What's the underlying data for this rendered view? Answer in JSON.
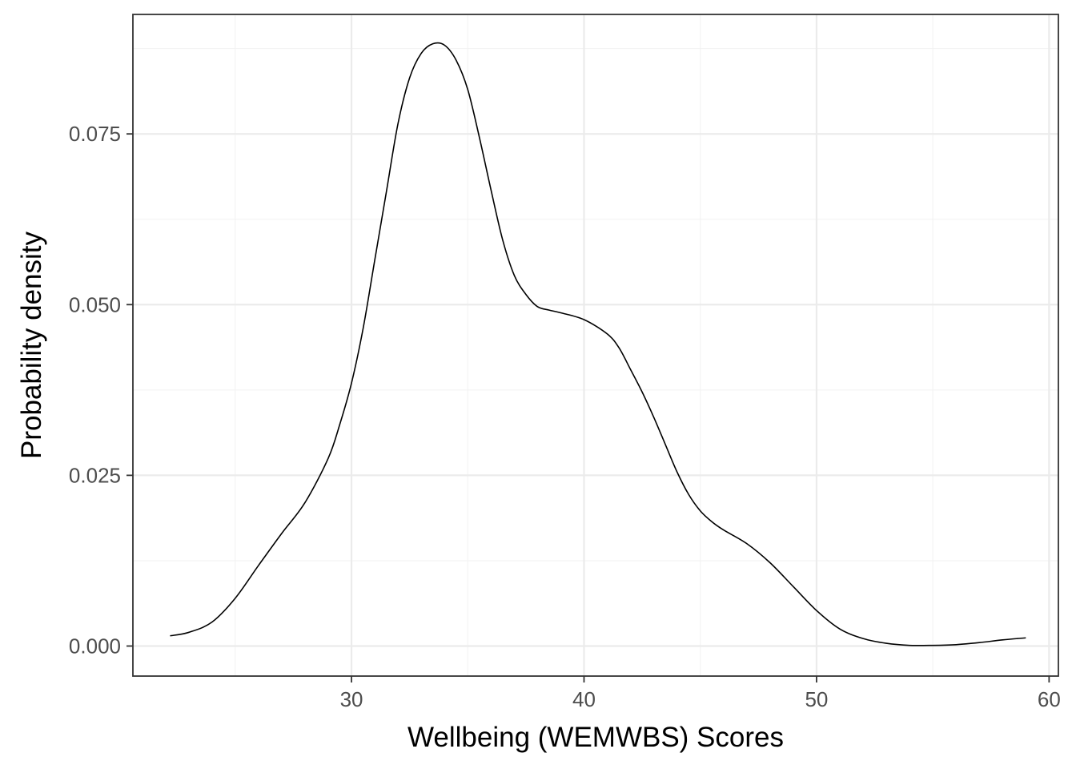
{
  "chart_data": {
    "type": "line",
    "title": "",
    "xlabel": "Wellbeing (WEMWBS) Scores",
    "ylabel": "Probability density",
    "xlim": [
      20.6,
      60.4
    ],
    "ylim": [
      -0.0044,
      0.0925
    ],
    "x_ticks": [
      30,
      40,
      50,
      60
    ],
    "x_tick_labels": [
      "30",
      "40",
      "50",
      "60"
    ],
    "y_ticks": [
      0.0,
      0.025,
      0.05,
      0.075
    ],
    "y_tick_labels": [
      "0.000",
      "0.025",
      "0.050",
      "0.075"
    ],
    "grid": true,
    "legend": "none",
    "series": [
      {
        "x": [
          22.2,
          23.0,
          24.0,
          25.0,
          26.0,
          27.0,
          28.0,
          29.0,
          29.5,
          30.0,
          30.5,
          31.0,
          31.5,
          32.0,
          32.5,
          33.0,
          33.5,
          34.0,
          34.5,
          35.0,
          35.5,
          36.0,
          36.5,
          37.0,
          37.5,
          38.0,
          38.5,
          39.0,
          40.0,
          41.0,
          41.5,
          42.0,
          42.5,
          43.0,
          43.5,
          44.0,
          44.5,
          45.0,
          45.5,
          46.0,
          47.0,
          48.0,
          49.0,
          50.0,
          51.0,
          52.0,
          53.0,
          54.0,
          55.0,
          56.0,
          57.0,
          58.0,
          59.0
        ],
        "y": [
          0.0015,
          0.002,
          0.0035,
          0.007,
          0.0118,
          0.0165,
          0.021,
          0.0275,
          0.0325,
          0.0385,
          0.0465,
          0.0565,
          0.0665,
          0.0765,
          0.0832,
          0.0868,
          0.0882,
          0.088,
          0.0858,
          0.0815,
          0.0745,
          0.0668,
          0.0595,
          0.0543,
          0.0515,
          0.0497,
          0.0492,
          0.0488,
          0.0478,
          0.0457,
          0.0437,
          0.0405,
          0.0372,
          0.0335,
          0.0295,
          0.0255,
          0.0222,
          0.0198,
          0.0182,
          0.017,
          0.015,
          0.0122,
          0.0087,
          0.0052,
          0.0025,
          0.0011,
          0.0004,
          0.0001,
          0.0001,
          0.0002,
          0.0005,
          0.0009,
          0.0012
        ]
      }
    ]
  }
}
